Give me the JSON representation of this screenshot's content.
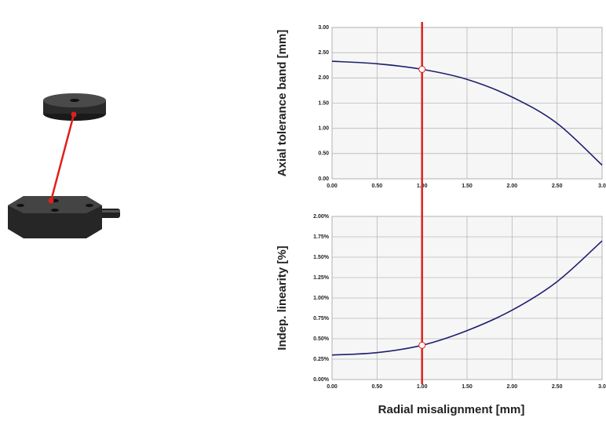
{
  "chart_data": [
    {
      "type": "line",
      "ylabel": "Axial tolerance band [mm]",
      "x": [
        0,
        0.5,
        1,
        1.5,
        2,
        2.5,
        3
      ],
      "series": [
        {
          "color": "#1f1f6e",
          "values": [
            2.33,
            2.28,
            2.17,
            1.97,
            1.62,
            1.1,
            0.27
          ]
        }
      ],
      "xlim": [
        0,
        3
      ],
      "xticks": [
        {
          "value": 0,
          "label": "0.00"
        },
        {
          "value": 0.5,
          "label": "0.50"
        },
        {
          "value": 1,
          "label": "1.00"
        },
        {
          "value": 1.5,
          "label": "1.50"
        },
        {
          "value": 2,
          "label": "2.00"
        },
        {
          "value": 2.5,
          "label": "2.50"
        },
        {
          "value": 3,
          "label": "3.0"
        }
      ],
      "ylim": [
        0,
        3
      ],
      "yticks": [
        {
          "value": 0,
          "label": "0.00"
        },
        {
          "value": 0.5,
          "label": "0.50"
        },
        {
          "value": 1,
          "label": "1.00"
        },
        {
          "value": 1.5,
          "label": "1.50"
        },
        {
          "value": 2,
          "label": "2.00"
        },
        {
          "value": 2.5,
          "label": "2.50"
        },
        {
          "value": 3,
          "label": "3.00"
        }
      ],
      "grid": true,
      "cursor_x": 1,
      "cursor_color": "#e0201b"
    },
    {
      "type": "line",
      "ylabel": "Indep. linearity [%]",
      "xlabel": "Radial misalignment [mm]",
      "x": [
        0,
        0.5,
        1,
        1.5,
        2,
        2.5,
        3
      ],
      "series": [
        {
          "color": "#1f1f6e",
          "values": [
            0.3,
            0.33,
            0.42,
            0.6,
            0.85,
            1.2,
            1.7
          ]
        }
      ],
      "xlim": [
        0,
        3
      ],
      "xticks": [
        {
          "value": 0,
          "label": "0.00"
        },
        {
          "value": 0.5,
          "label": "0.50"
        },
        {
          "value": 1,
          "label": "1.00"
        },
        {
          "value": 1.5,
          "label": "1.50"
        },
        {
          "value": 2,
          "label": "2.00"
        },
        {
          "value": 2.5,
          "label": "2.50"
        },
        {
          "value": 3,
          "label": "3.0"
        }
      ],
      "ylim": [
        0,
        2
      ],
      "yticks": [
        {
          "value": 0,
          "label": "0.00%"
        },
        {
          "value": 0.25,
          "label": "0.25%"
        },
        {
          "value": 0.5,
          "label": "0.50%"
        },
        {
          "value": 0.75,
          "label": "0.75%"
        },
        {
          "value": 1,
          "label": "1.00%"
        },
        {
          "value": 1.25,
          "label": "1.25%"
        },
        {
          "value": 1.5,
          "label": "1.50%"
        },
        {
          "value": 1.75,
          "label": "1.75%"
        },
        {
          "value": 2,
          "label": "2.00%"
        }
      ],
      "grid": true
    }
  ]
}
